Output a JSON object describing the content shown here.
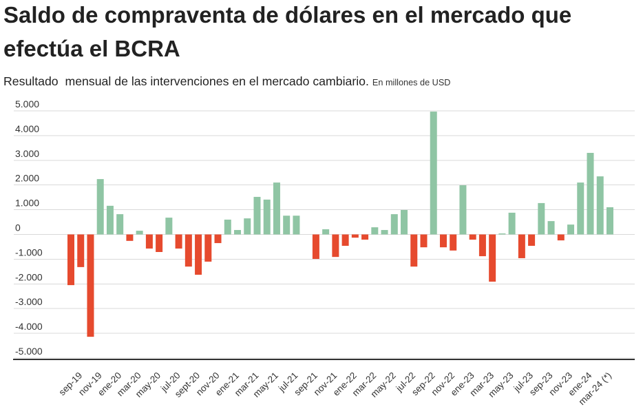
{
  "chart_data": {
    "type": "bar",
    "title": "Saldo de compraventa de dólares en el mercado que efectúa el BCRA",
    "subtitle": "Resultado  mensual de las intervenciones en el mercado cambiario.",
    "unit_note": "En millones de USD",
    "ylim": [
      -5000,
      5000
    ],
    "yticks": [
      5000,
      4000,
      3000,
      2000,
      1000,
      0,
      -1000,
      -2000,
      -3000,
      -4000,
      -5000
    ],
    "ytick_labels": [
      "5.000",
      "4.000",
      "3.000",
      "2.000",
      "1.000",
      "0",
      "-1.000",
      "-2.000",
      "-3.000",
      "-4.000",
      "-5.000"
    ],
    "grid": true,
    "categories": [
      "",
      "sep-19",
      "",
      "nov-19",
      "",
      "ene-20",
      "",
      "mar-20",
      "",
      "may-20",
      "",
      "jul-20",
      "",
      "sept-20",
      "",
      "nov-20",
      "",
      "ene-21",
      "",
      "mar-21",
      "",
      "may-21",
      "",
      "jul-21",
      "",
      "sep-21",
      "",
      "nov-21",
      "",
      "ene-22",
      "",
      "mar-22",
      "",
      "may-22",
      "",
      "jul-22",
      "",
      "sep-22",
      "",
      "nov-22",
      "",
      "ene-23",
      "",
      "mar-23",
      "",
      "may-23",
      "",
      "jul-23",
      "",
      "sep-23",
      "",
      "nov-23",
      "",
      "ene-24",
      "",
      "mar-24 (*)"
    ],
    "values": [
      -2050,
      -1320,
      -4140,
      2240,
      1160,
      820,
      -260,
      150,
      -570,
      -710,
      680,
      -570,
      -1300,
      -1630,
      -1100,
      -350,
      600,
      180,
      650,
      1520,
      1410,
      2100,
      760,
      760,
      0,
      -990,
      210,
      -910,
      -460,
      -130,
      -210,
      290,
      180,
      820,
      990,
      -1300,
      -520,
      4970,
      -520,
      -650,
      1990,
      -210,
      -880,
      -1910,
      40,
      880,
      -960,
      -460,
      1270,
      540,
      -240,
      400,
      2100,
      3300,
      2350,
      1100
    ],
    "colors": {
      "positive": "#8fc5a4",
      "negative": "#e64a2e"
    }
  }
}
